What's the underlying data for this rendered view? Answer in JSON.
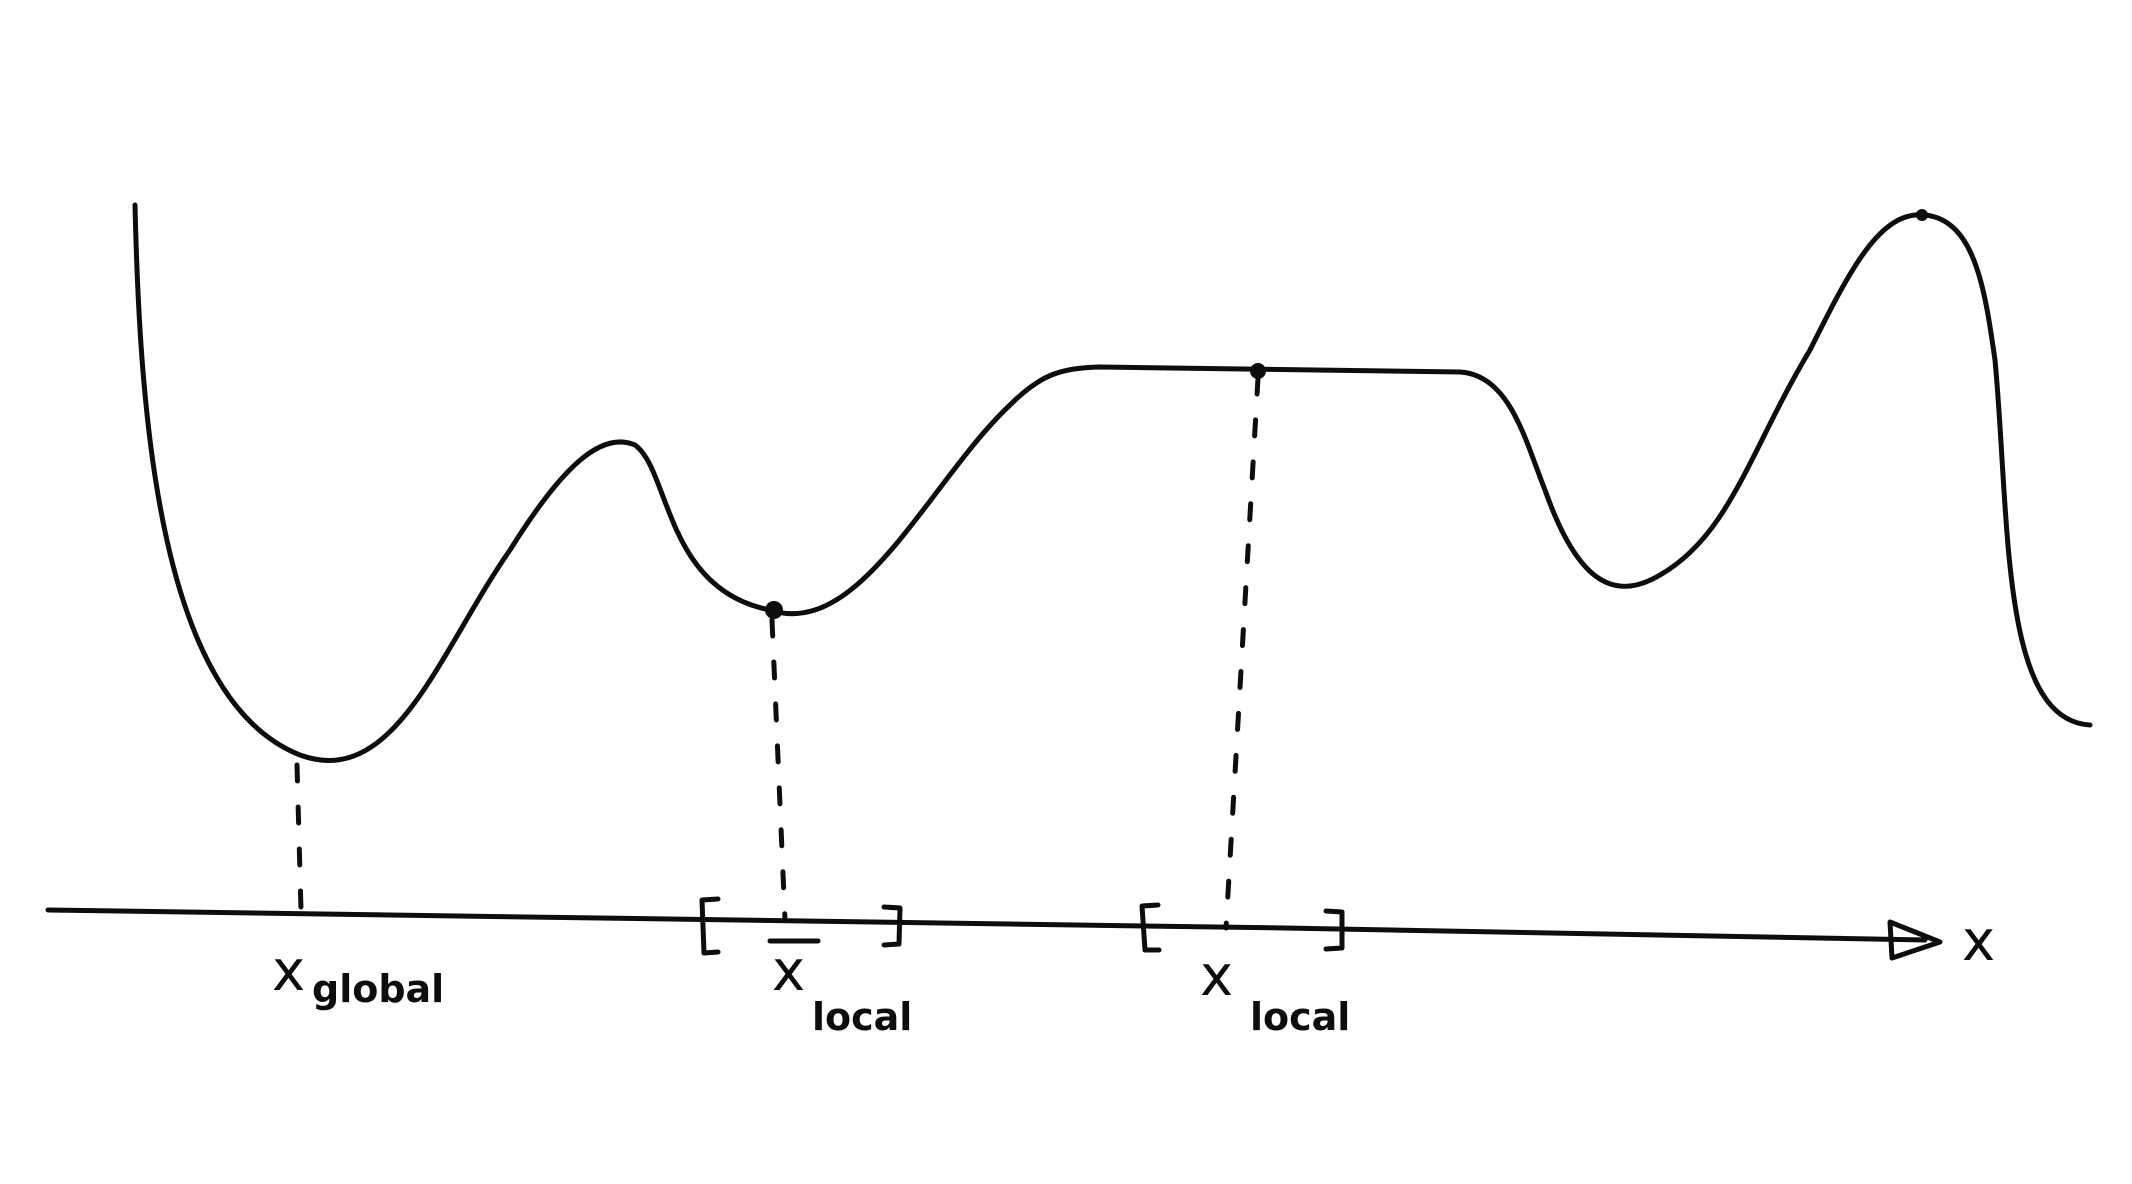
{
  "diagram": {
    "axis_label": "x",
    "labels": [
      {
        "main": "x",
        "sub": "global"
      },
      {
        "main": "x",
        "sub": "local"
      },
      {
        "main": "x",
        "sub": "local"
      }
    ],
    "colors": {
      "ink": "#0d0d0d",
      "background": "#ffffff"
    }
  }
}
